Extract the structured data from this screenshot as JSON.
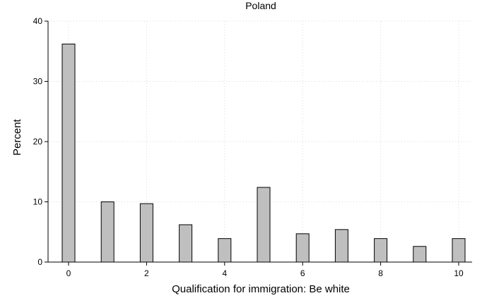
{
  "chart_data": {
    "type": "bar",
    "title": "Poland",
    "xlabel": "Qualification for immigration: Be white",
    "ylabel": "Percent",
    "x": [
      0,
      1,
      2,
      3,
      4,
      5,
      6,
      7,
      8,
      9,
      10
    ],
    "values": [
      36.2,
      10.0,
      9.7,
      6.2,
      3.9,
      12.4,
      4.7,
      5.4,
      3.9,
      2.6,
      3.9
    ],
    "xlim": [
      0,
      10
    ],
    "ylim": [
      0,
      40
    ],
    "x_ticks": [
      0,
      2,
      4,
      6,
      8,
      10
    ],
    "y_ticks": [
      0,
      10,
      20,
      30,
      40
    ],
    "grid": true,
    "bar_color": "#bfbfbf",
    "bar_edge_color": "#000000"
  }
}
